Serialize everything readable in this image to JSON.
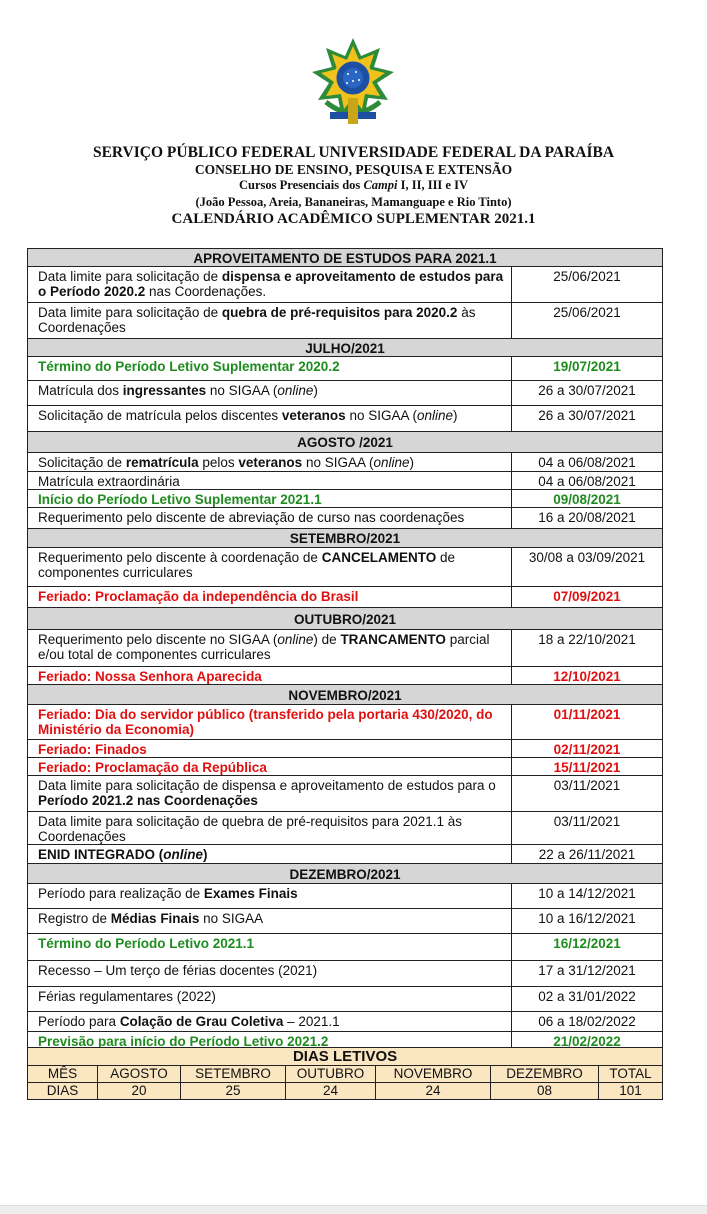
{
  "header": {
    "line1": "SERVIÇO PÚBLICO FEDERAL UNIVERSIDADE FEDERAL DA PARAÍBA",
    "line2": "CONSELHO DE ENSINO, PESQUISA E EXTENSÃO",
    "line3_pre": "Cursos Presenciais dos ",
    "line3_italic": "Campi",
    "line3_post": " I, II, III e IV",
    "line4": "(João Pessoa, Areia, Bananeiras, Mamanguape e Rio Tinto)",
    "line5": "CALENDÁRIO ACADÊMICO SUPLEMENTAR 2021.1"
  },
  "colors": {
    "green": "#1e8c1e",
    "red": "#e01010",
    "section_bg": "#d6d6d6",
    "summary_bg": "#fbe6c2"
  },
  "sections": [
    {
      "title": "APROVEITAMENTO DE ESTUDOS PARA 2021.1",
      "rows": [
        {
          "style": "normal",
          "date": "25/06/2021",
          "parts": [
            {
              "t": "Data limite para solicitação de "
            },
            {
              "t": "dispensa e aproveitamento de estudos para o Período 2020.2",
              "b": true
            },
            {
              "t": " nas Coordenações."
            }
          ]
        },
        {
          "style": "normal",
          "date": "25/06/2021",
          "parts": [
            {
              "t": "Data limite para solicitação de "
            },
            {
              "t": "quebra de pré-requisitos para 2020.2",
              "b": true
            },
            {
              "t": " às Coordenações"
            }
          ]
        }
      ]
    },
    {
      "title": "JULHO/2021",
      "rows": [
        {
          "style": "green",
          "date": "19/07/2021",
          "parts": [
            {
              "t": "Término do Período Letivo Suplementar 2020.2"
            }
          ]
        },
        {
          "style": "normal",
          "date": "26 a 30/07/2021",
          "parts": [
            {
              "t": "Matrícula dos "
            },
            {
              "t": "ingressantes",
              "b": true
            },
            {
              "t": " no SIGAA ("
            },
            {
              "t": "online",
              "i": true
            },
            {
              "t": ")"
            }
          ]
        },
        {
          "style": "normal",
          "date": "26 a 30/07/2021",
          "parts": [
            {
              "t": "Solicitação de matrícula pelos discentes "
            },
            {
              "t": "veteranos",
              "b": true
            },
            {
              "t": " no SIGAA ("
            },
            {
              "t": "online",
              "i": true
            },
            {
              "t": ")"
            }
          ]
        }
      ]
    },
    {
      "title": "AGOSTO /2021",
      "rows": [
        {
          "style": "normal",
          "date": "04 a 06/08/2021",
          "parts": [
            {
              "t": "Solicitação de "
            },
            {
              "t": "rematrícula",
              "b": true
            },
            {
              "t": " pelos "
            },
            {
              "t": "veteranos",
              "b": true
            },
            {
              "t": " no SIGAA ("
            },
            {
              "t": "online",
              "i": true
            },
            {
              "t": ")"
            }
          ]
        },
        {
          "style": "normal",
          "date": "04 a 06/08/2021",
          "parts": [
            {
              "t": "Matrícula extraordinária"
            }
          ]
        },
        {
          "style": "green",
          "date": "09/08/2021",
          "parts": [
            {
              "t": "Início do Período Letivo Suplementar 2021.1"
            }
          ]
        },
        {
          "style": "normal",
          "date": "16 a 20/08/2021",
          "parts": [
            {
              "t": "Requerimento pelo discente de abreviação de curso nas coordenações"
            }
          ]
        }
      ]
    },
    {
      "title": "SETEMBRO/2021",
      "rows": [
        {
          "style": "normal",
          "date": "30/08 a 03/09/2021",
          "parts": [
            {
              "t": "Requerimento pelo discente à coordenação de "
            },
            {
              "t": "CANCELAMENTO",
              "b": true
            },
            {
              "t": " de componentes curriculares"
            }
          ]
        },
        {
          "style": "red",
          "date": "07/09/2021",
          "parts": [
            {
              "t": "Feriado: Proclamação da independência do Brasil"
            }
          ]
        }
      ]
    },
    {
      "title": "OUTUBRO/2021",
      "rows": [
        {
          "style": "normal",
          "date": "18 a 22/10/2021",
          "parts": [
            {
              "t": "Requerimento pelo discente no SIGAA ("
            },
            {
              "t": "online",
              "i": true
            },
            {
              "t": ") de "
            },
            {
              "t": "TRANCAMENTO",
              "b": true
            },
            {
              "t": " parcial e/ou total de componentes curriculares"
            }
          ]
        },
        {
          "style": "red",
          "date": "12/10/2021",
          "parts": [
            {
              "t": "Feriado: Nossa Senhora Aparecida"
            }
          ]
        }
      ]
    },
    {
      "title": "NOVEMBRO/2021",
      "rows": [
        {
          "style": "red",
          "date": "01/11/2021",
          "parts": [
            {
              "t": "Feriado: Dia do servidor público (transferido pela portaria 430/2020, do Ministério da Economia)"
            }
          ]
        },
        {
          "style": "red",
          "date": "02/11/2021",
          "parts": [
            {
              "t": "Feriado: Finados"
            }
          ]
        },
        {
          "style": "red",
          "date": "15/11/2021",
          "parts": [
            {
              "t": "Feriado: Proclamação da República"
            }
          ]
        },
        {
          "style": "normal",
          "date": "03/11/2021",
          "parts": [
            {
              "t": "Data limite para solicitação de dispensa e aproveitamento de estudos para o "
            },
            {
              "t": "Período 2021.2 nas Coordenações",
              "b": true
            }
          ]
        },
        {
          "style": "normal",
          "date": "03/11/2021",
          "parts": [
            {
              "t": "Data limite para solicitação de quebra de pré-requisitos para 2021.1 às Coordenações"
            }
          ]
        },
        {
          "style": "normal",
          "date": "22 a 26/11/2021",
          "parts": [
            {
              "t": "ENID INTEGRADO (",
              "b": true
            },
            {
              "t": "online",
              "b": true,
              "i": true
            },
            {
              "t": ")",
              "b": true
            }
          ]
        }
      ]
    },
    {
      "title": "DEZEMBRO/2021",
      "rows": [
        {
          "style": "normal",
          "date": "10 a 14/12/2021",
          "parts": [
            {
              "t": "Período para realização de "
            },
            {
              "t": "Exames Finais",
              "b": true
            }
          ]
        },
        {
          "style": "normal",
          "date": "10 a 16/12/2021",
          "parts": [
            {
              "t": "Registro de "
            },
            {
              "t": "Médias Finais",
              "b": true
            },
            {
              "t": " no SIGAA"
            }
          ]
        },
        {
          "style": "green",
          "date": "16/12/2021",
          "parts": [
            {
              "t": "Término do Período Letivo 2021.1"
            }
          ]
        },
        {
          "style": "normal",
          "date": "17 a 31/12/2021",
          "parts": [
            {
              "t": "Recesso – Um terço de férias docentes (2021)"
            }
          ]
        },
        {
          "style": "normal",
          "date": "02 a 31/01/2022",
          "parts": [
            {
              "t": "Férias regulamentares (2022)"
            }
          ]
        },
        {
          "style": "normal",
          "date": "06 a 18/02/2022",
          "parts": [
            {
              "t": "Período para "
            },
            {
              "t": "Colação de Grau Coletiva",
              "b": true
            },
            {
              "t": " – 2021.1"
            }
          ]
        },
        {
          "style": "green",
          "date": "21/02/2022",
          "parts": [
            {
              "t": "Previsão para início do Período Letivo 2021.2"
            }
          ]
        }
      ]
    }
  ],
  "dias_letivos": {
    "title": "DIAS LETIVOS",
    "header": [
      "MÊS",
      "AGOSTO",
      "SETEMBRO",
      "OUTUBRO",
      "NOVEMBRO",
      "DEZEMBRO",
      "TOTAL"
    ],
    "values": [
      "DIAS",
      "20",
      "25",
      "24",
      "24",
      "08",
      "101"
    ]
  }
}
